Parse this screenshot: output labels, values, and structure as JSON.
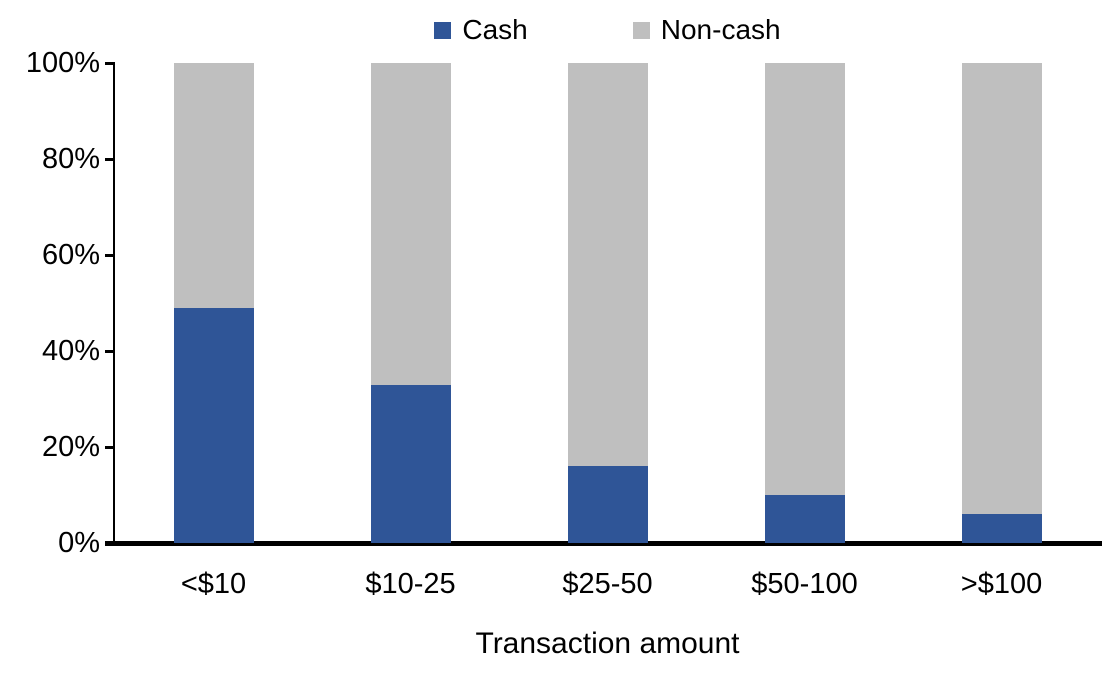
{
  "chart_data": {
    "type": "bar",
    "variant": "stacked-100-percent",
    "title": "",
    "xlabel": "Transaction amount",
    "ylabel": "",
    "categories": [
      "<$10",
      "$10-25",
      "$25-50",
      "$50-100",
      ">$100"
    ],
    "series": [
      {
        "name": "Cash",
        "color": "#2F5597",
        "values": [
          49,
          33,
          16,
          10,
          6
        ]
      },
      {
        "name": "Non-cash",
        "color": "#BFBFBF",
        "values": [
          51,
          67,
          84,
          90,
          94
        ]
      }
    ],
    "ylim": [
      0,
      100
    ],
    "yticks": [
      "0%",
      "20%",
      "40%",
      "60%",
      "80%",
      "100%"
    ],
    "grid": false,
    "legend_position": "top-center",
    "axis_color": "#000000"
  }
}
